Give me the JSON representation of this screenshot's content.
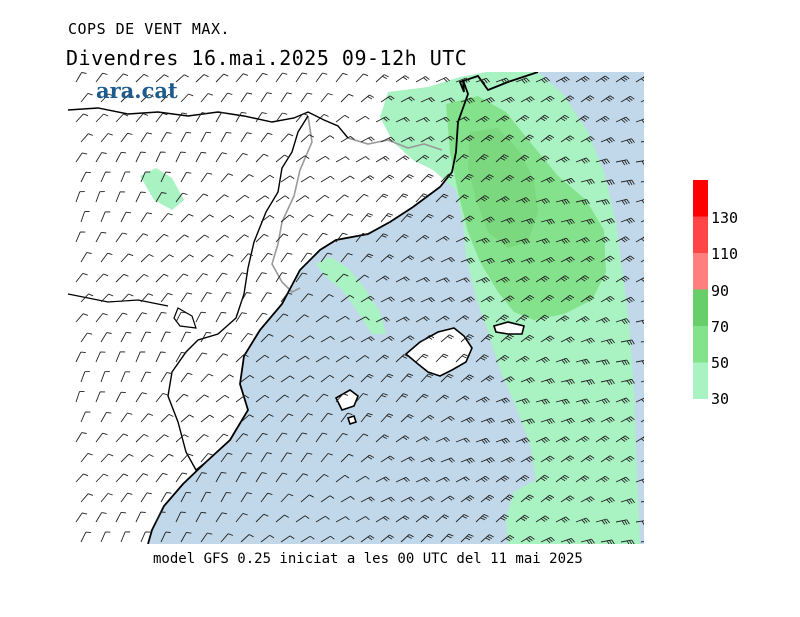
{
  "header": {
    "title": "COPS DE VENT MAX.",
    "subtitle": "Divendres  16.mai.2025 09-12h UTC"
  },
  "logo": {
    "text": "ara.cat"
  },
  "footer": {
    "text": "model GFS 0.25 iniciat a les 00 UTC del 11 mai 2025"
  },
  "colors": {
    "sea": "#c0d8ea",
    "land": "#ffffff",
    "wind_30_50": "#a9f2c2",
    "wind_50_70": "#85e28c",
    "wind_70_90": "#66cf6a",
    "wind_90_110": "#ff7f7f",
    "wind_110_130": "#ff4545",
    "wind_130_plus": "#ff0000",
    "coastline": "#000000",
    "border": "#9a9a9a",
    "logo": "#1f5c8e"
  },
  "legend": {
    "tick_labels": [
      "130",
      "110",
      "90",
      "70",
      "50",
      "30"
    ],
    "classes": [
      {
        "from": 130,
        "color": "#ff0000"
      },
      {
        "from": 110,
        "color": "#ff4545"
      },
      {
        "from": 90,
        "color": "#ff7f7f"
      },
      {
        "from": 70,
        "color": "#66cf6a"
      },
      {
        "from": 50,
        "color": "#85e28c"
      },
      {
        "from": 30,
        "color": "#a9f2c2"
      }
    ]
  },
  "map_layers": {
    "barbs": "wind barbs (gust direction/speed)",
    "islands": [
      "Mallorca",
      "Menorca",
      "Eivissa"
    ]
  }
}
